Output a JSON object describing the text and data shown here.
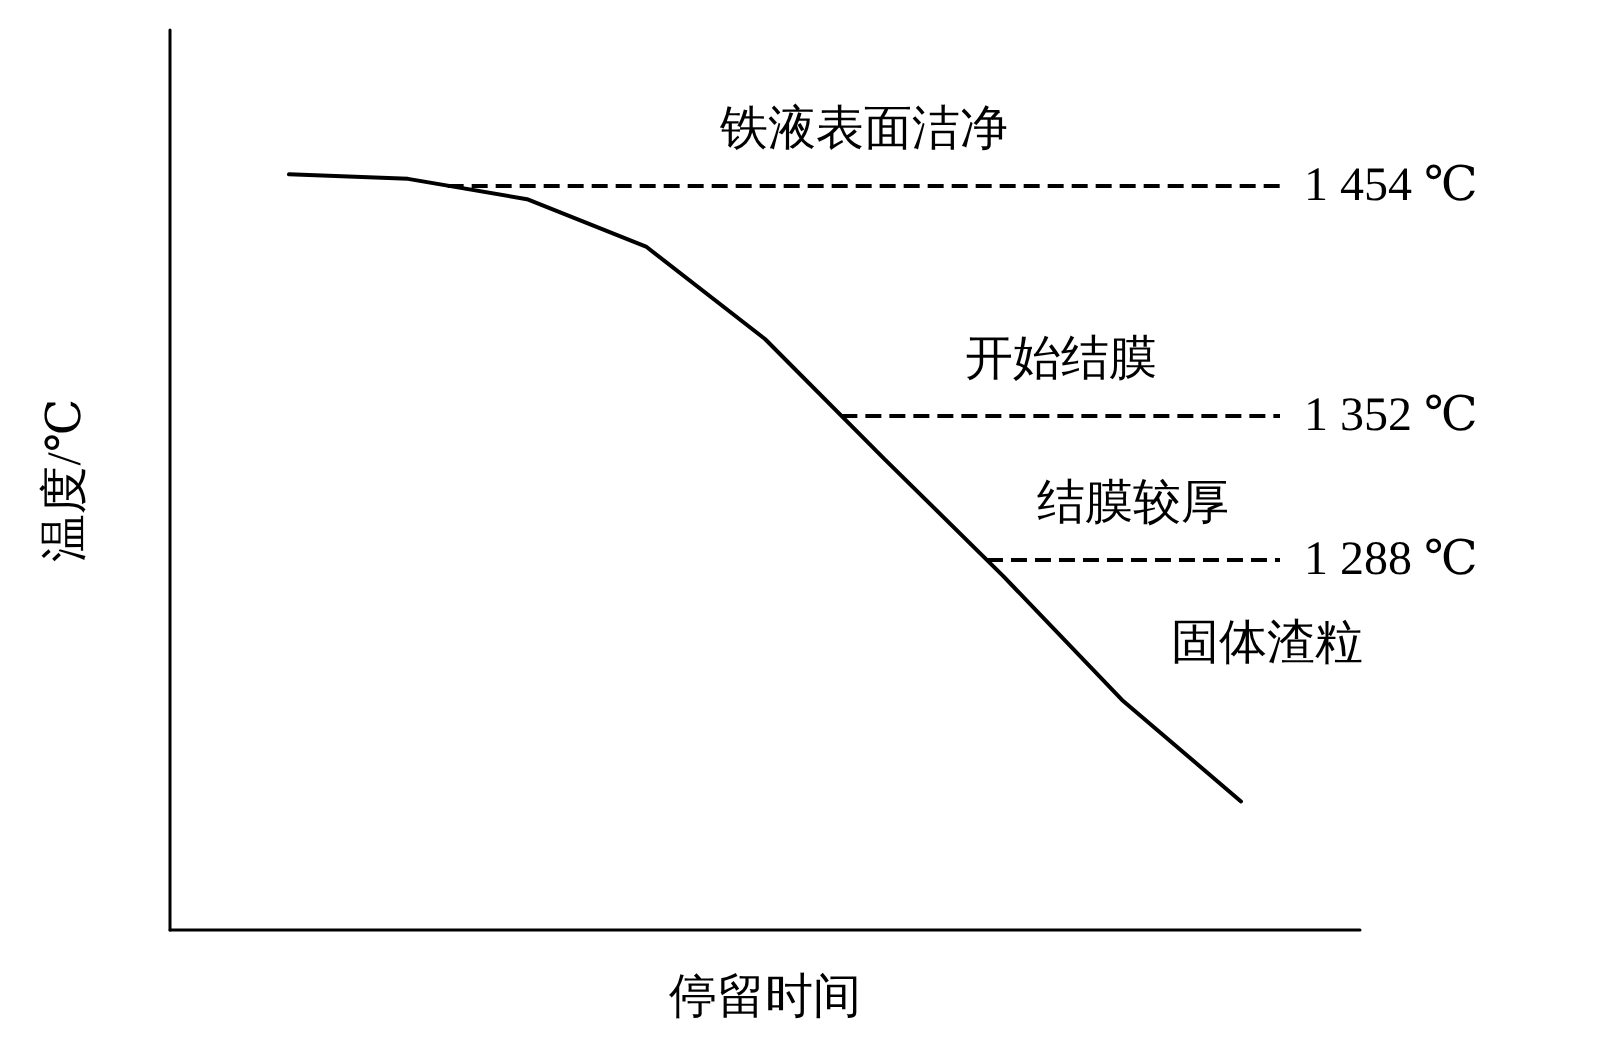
{
  "chart_data": {
    "type": "line",
    "xlabel": "停留时间",
    "ylabel": "温度/℃",
    "categories": [
      null,
      null,
      null,
      null,
      null,
      null,
      null,
      null,
      null,
      null,
      null
    ],
    "values": [
      null,
      1459,
      1457,
      1448,
      1427,
      1386,
      1333,
      1281,
      1226,
      1181,
      null
    ],
    "color": "#000000",
    "ylim": [
      1124,
      1523
    ],
    "tick_labels": false,
    "grid": false,
    "marker": "none",
    "line_style": "solid",
    "ref_lines": [
      {
        "axis": "y",
        "value": 1454,
        "label": "1 454 ℃",
        "line_style": "dashed",
        "color": "#000000"
      },
      {
        "axis": "y",
        "value": 1352,
        "label": "1 352 ℃",
        "line_style": "dashed",
        "color": "#000000"
      },
      {
        "axis": "y",
        "value": 1288,
        "label": "1 288 ℃",
        "line_style": "dashed",
        "color": "#000000"
      }
    ],
    "annotations": [
      "铁液表面洁净",
      "开始结膜",
      "结膜较厚",
      "固体渣粒"
    ]
  }
}
